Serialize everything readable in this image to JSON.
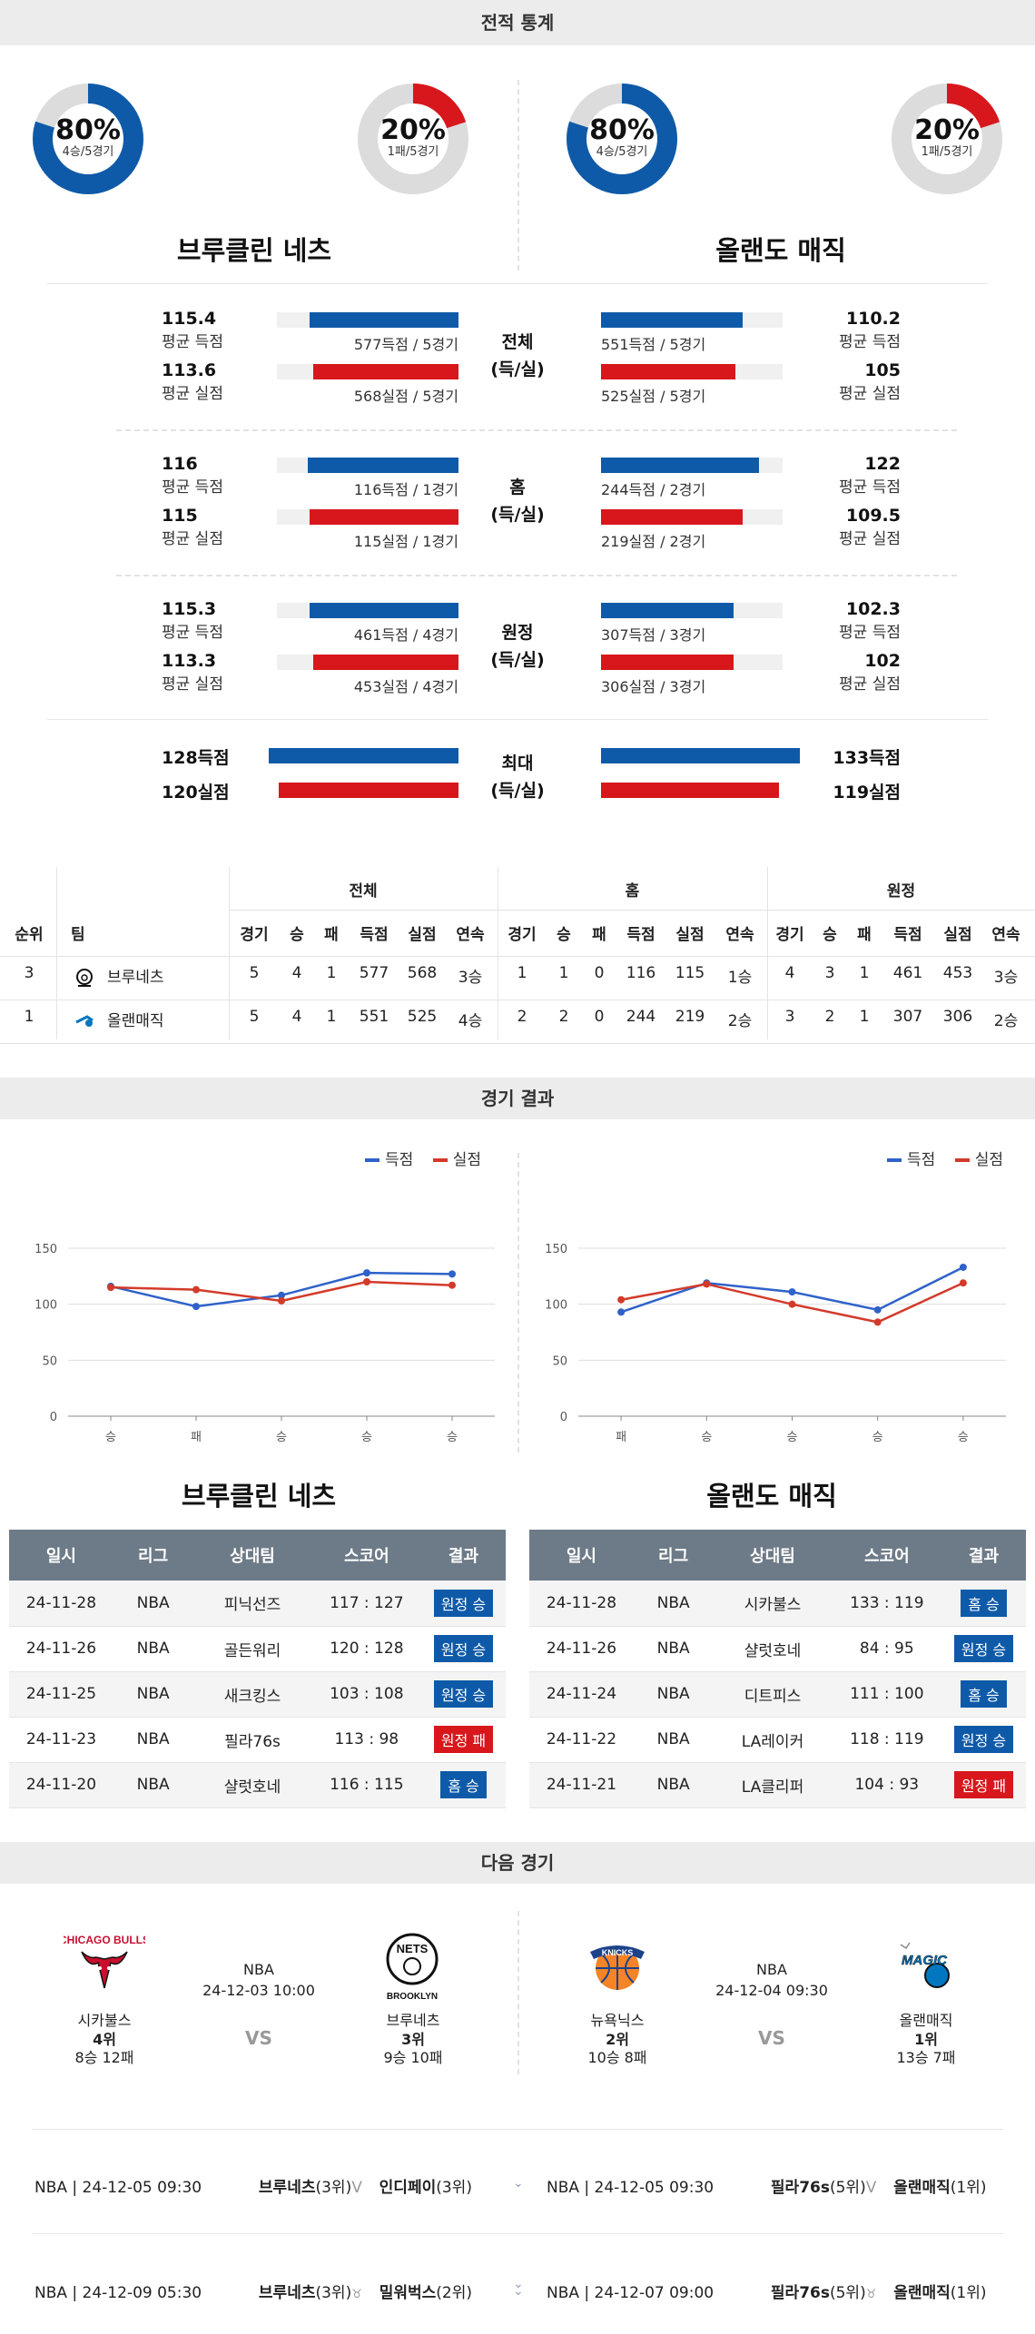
{
  "sections": {
    "record_stats": "전적 통계",
    "game_results": "경기 결과",
    "next_games": "다음 경기"
  },
  "donuts": [
    {
      "pct": "80%",
      "sub": "4승/5경기",
      "value": 0.8,
      "color": "#0f5aa8"
    },
    {
      "pct": "20%",
      "sub": "1패/5경기",
      "value": 0.2,
      "color": "#d7171c"
    },
    {
      "pct": "80%",
      "sub": "4승/5경기",
      "value": 0.8,
      "color": "#0f5aa8"
    },
    {
      "pct": "20%",
      "sub": "1패/5경기",
      "value": 0.2,
      "color": "#d7171c"
    }
  ],
  "teams": {
    "left": "브루클린 네츠",
    "right": "올랜도 매직"
  },
  "stat_groups": [
    {
      "cat1": "전체",
      "cat2": "(득/실)",
      "left": [
        {
          "val": "115.4",
          "lbl": "평균 득점",
          "cap": "577득점 / 5경기",
          "fill": 0.82,
          "color": "blue"
        },
        {
          "val": "113.6",
          "lbl": "평균 실점",
          "cap": "568실점 / 5경기",
          "fill": 0.8,
          "color": "red"
        }
      ],
      "right": [
        {
          "val": "110.2",
          "lbl": "평균 득점",
          "cap": "551득점 / 5경기",
          "fill": 0.78,
          "color": "blue"
        },
        {
          "val": "105",
          "lbl": "평균 실점",
          "cap": "525실점 / 5경기",
          "fill": 0.74,
          "color": "red"
        }
      ]
    },
    {
      "cat1": "홈",
      "cat2": "(득/실)",
      "left": [
        {
          "val": "116",
          "lbl": "평균 득점",
          "cap": "116득점 / 1경기",
          "fill": 0.83,
          "color": "blue"
        },
        {
          "val": "115",
          "lbl": "평균 실점",
          "cap": "115실점 / 1경기",
          "fill": 0.82,
          "color": "red"
        }
      ],
      "right": [
        {
          "val": "122",
          "lbl": "평균 득점",
          "cap": "244득점 / 2경기",
          "fill": 0.87,
          "color": "blue"
        },
        {
          "val": "109.5",
          "lbl": "평균 실점",
          "cap": "219실점 / 2경기",
          "fill": 0.78,
          "color": "red"
        }
      ]
    },
    {
      "cat1": "원정",
      "cat2": "(득/실)",
      "left": [
        {
          "val": "115.3",
          "lbl": "평균 득점",
          "cap": "461득점 / 4경기",
          "fill": 0.82,
          "color": "blue"
        },
        {
          "val": "113.3",
          "lbl": "평균 실점",
          "cap": "453실점 / 4경기",
          "fill": 0.8,
          "color": "red"
        }
      ],
      "right": [
        {
          "val": "102.3",
          "lbl": "평균 득점",
          "cap": "307득점 / 3경기",
          "fill": 0.73,
          "color": "blue"
        },
        {
          "val": "102",
          "lbl": "평균 실점",
          "cap": "306실점 / 3경기",
          "fill": 0.73,
          "color": "red"
        }
      ]
    }
  ],
  "max_group": {
    "cat1": "최대",
    "cat2": "(득/실)",
    "left": [
      {
        "val": "128득점",
        "fill": 0.91,
        "color": "blue"
      },
      {
        "val": "120실점",
        "fill": 0.86,
        "color": "red"
      }
    ],
    "right": [
      {
        "val": "133득점",
        "fill": 0.95,
        "color": "blue"
      },
      {
        "val": "119실점",
        "fill": 0.85,
        "color": "red"
      }
    ]
  },
  "ranking_table": {
    "group_headers": [
      "전체",
      "홈",
      "원정"
    ],
    "headers": [
      "순위",
      "팀",
      "경기",
      "승",
      "패",
      "득점",
      "실점",
      "연속",
      "경기",
      "승",
      "패",
      "득점",
      "실점",
      "연속",
      "경기",
      "승",
      "패",
      "득점",
      "실점",
      "연속"
    ],
    "rows": [
      {
        "rank": "3",
        "logo": "nets-logo-icon",
        "team": "브루네츠",
        "cells": [
          "5",
          "4",
          "1",
          "577",
          "568",
          "3승",
          "1",
          "1",
          "0",
          "116",
          "115",
          "1승",
          "4",
          "3",
          "1",
          "461",
          "453",
          "3승"
        ]
      },
      {
        "rank": "1",
        "logo": "magic-logo-icon",
        "team": "올랜매직",
        "cells": [
          "5",
          "4",
          "1",
          "551",
          "525",
          "4승",
          "2",
          "2",
          "0",
          "244",
          "219",
          "2승",
          "3",
          "2",
          "1",
          "307",
          "306",
          "2승"
        ]
      }
    ]
  },
  "chart_data": [
    {
      "type": "line",
      "categories": [
        "승",
        "패",
        "승",
        "승",
        "승"
      ],
      "series": [
        {
          "name": "득점",
          "values": [
            116,
            98,
            108,
            128,
            127
          ],
          "color": "#2f62c9"
        },
        {
          "name": "실점",
          "values": [
            115,
            113,
            103,
            120,
            117
          ],
          "color": "#d33a2a"
        }
      ],
      "yticks": [
        "0",
        "50",
        "100",
        "150"
      ],
      "ylim": [
        0,
        150
      ],
      "legend": "top-right"
    },
    {
      "type": "line",
      "categories": [
        "패",
        "승",
        "승",
        "승",
        "승"
      ],
      "series": [
        {
          "name": "득점",
          "values": [
            93,
            119,
            111,
            95,
            133
          ],
          "color": "#2f62c9"
        },
        {
          "name": "실점",
          "values": [
            104,
            118,
            100,
            84,
            119
          ],
          "color": "#d33a2a"
        }
      ],
      "yticks": [
        "0",
        "50",
        "100",
        "150"
      ],
      "ylim": [
        0,
        150
      ],
      "legend": "top-right"
    }
  ],
  "results_tables": {
    "headers": [
      "일시",
      "리그",
      "상대팀",
      "스코어",
      "결과"
    ],
    "left": [
      {
        "date": "24-11-28",
        "league": "NBA",
        "opp": "피닉선즈",
        "score": "117 : 127",
        "result": "원정 승",
        "rc": "blue"
      },
      {
        "date": "24-11-26",
        "league": "NBA",
        "opp": "골든워리",
        "score": "120 : 128",
        "result": "원정 승",
        "rc": "blue"
      },
      {
        "date": "24-11-25",
        "league": "NBA",
        "opp": "새크킹스",
        "score": "103 : 108",
        "result": "원정 승",
        "rc": "blue"
      },
      {
        "date": "24-11-23",
        "league": "NBA",
        "opp": "필라76s",
        "score": "113 : 98",
        "result": "원정 패",
        "rc": "red"
      },
      {
        "date": "24-11-20",
        "league": "NBA",
        "opp": "샬럿호네",
        "score": "116 : 115",
        "result": "홈 승",
        "rc": "blue"
      }
    ],
    "right": [
      {
        "date": "24-11-28",
        "league": "NBA",
        "opp": "시카불스",
        "score": "133 : 119",
        "result": "홈 승",
        "rc": "blue"
      },
      {
        "date": "24-11-26",
        "league": "NBA",
        "opp": "샬럿호네",
        "score": "84 : 95",
        "result": "원정 승",
        "rc": "blue"
      },
      {
        "date": "24-11-24",
        "league": "NBA",
        "opp": "디트피스",
        "score": "111 : 100",
        "result": "홈 승",
        "rc": "blue"
      },
      {
        "date": "24-11-22",
        "league": "NBA",
        "opp": "LA레이커",
        "score": "118 : 119",
        "result": "원정 승",
        "rc": "blue"
      },
      {
        "date": "24-11-21",
        "league": "NBA",
        "opp": "LA클리퍼",
        "score": "104 : 93",
        "result": "원정 패",
        "rc": "red"
      }
    ]
  },
  "next_games": {
    "left": {
      "league": "NBA",
      "datetime": "24-12-03 10:00",
      "vs": "VS",
      "home": {
        "logo_text": "CHICAGO BULLS",
        "name": "시카불스",
        "rank": "4위",
        "record": "8승 12패"
      },
      "away": {
        "logo_text1": "NETS",
        "logo_text2": "BROOKLYN",
        "name": "브루네츠",
        "rank": "3위",
        "record": "9승 10패"
      }
    },
    "right": {
      "league": "NBA",
      "datetime": "24-12-04 09:30",
      "vs": "VS",
      "home": {
        "logo_text": "KNICKS",
        "name": "뉴욕닉스",
        "rank": "2위",
        "record": "10승 8패"
      },
      "away": {
        "logo_text": "MAGIC",
        "name": "올랜매직",
        "rank": "1위",
        "record": "13승 7패"
      }
    }
  },
  "upcoming": [
    {
      "left": {
        "meta": "NBA | 24-12-05 09:30",
        "t1": "브루네츠",
        "r1": "(3위)",
        "mark": "V",
        "t2": "인디페이",
        "r2": "(3위)"
      },
      "right": {
        "meta": "NBA | 24-12-05 09:30",
        "t1": "필라76s",
        "r1": "(5위)",
        "mark": "V",
        "t2": "올랜매직",
        "r2": "(1위)"
      }
    },
    {
      "left": {
        "meta": "NBA | 24-12-09 05:30",
        "t1": "브루네츠",
        "r1": "(3위)",
        "mark": "♉",
        "t2": "밀워벅스",
        "r2": "(2위)"
      },
      "right": {
        "meta": "NBA | 24-12-07 09:00",
        "t1": "필라76s",
        "r1": "(5위)",
        "mark": "♉",
        "t2": "올랜매직",
        "r2": "(1위)"
      }
    }
  ]
}
